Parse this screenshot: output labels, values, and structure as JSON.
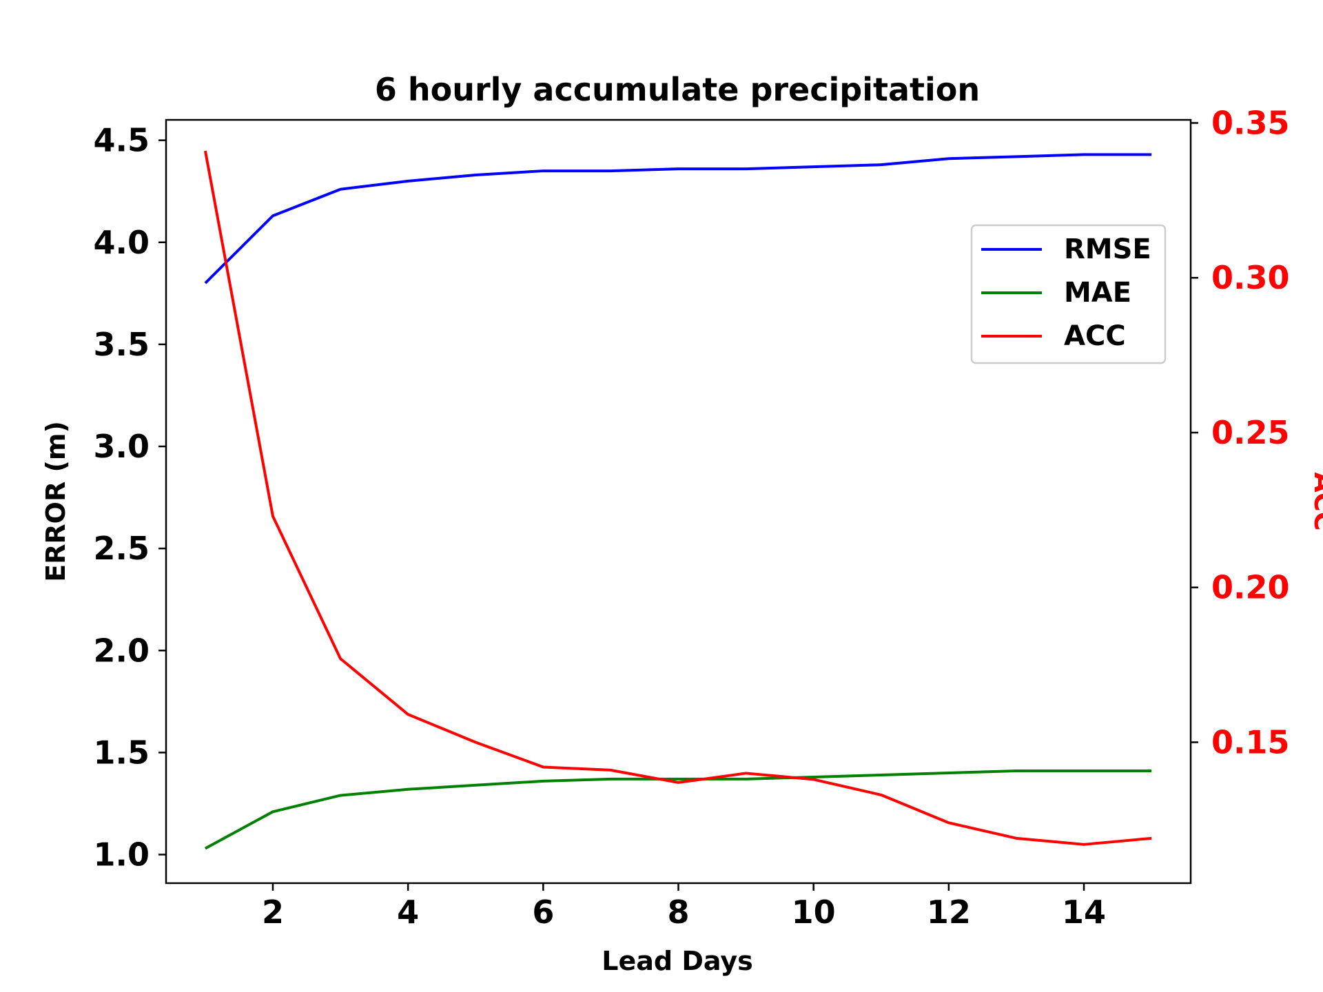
{
  "chart_data": {
    "type": "line",
    "title": "6 hourly accumulate precipitation",
    "xlabel": "Lead Days",
    "ylabel": "ERROR (m)",
    "y2label": "ACC",
    "x": [
      1,
      2,
      3,
      4,
      5,
      6,
      7,
      8,
      9,
      10,
      11,
      12,
      13,
      14,
      15
    ],
    "xlim": [
      0.42,
      15.58
    ],
    "ylim": [
      0.86,
      4.6
    ],
    "y2lim": [
      0.1045,
      0.351
    ],
    "xticks": [
      2,
      4,
      6,
      8,
      10,
      12,
      14
    ],
    "yticks": [
      1.0,
      1.5,
      2.0,
      2.5,
      3.0,
      3.5,
      4.0,
      4.5
    ],
    "y2ticks": [
      0.15,
      0.2,
      0.25,
      0.3,
      0.35
    ],
    "grid": false,
    "legend_position": "upper-right",
    "series": [
      {
        "name": "RMSE",
        "axis": "left",
        "color": "#0000ff",
        "values": [
          3.8,
          4.13,
          4.26,
          4.3,
          4.33,
          4.35,
          4.35,
          4.36,
          4.36,
          4.37,
          4.38,
          4.41,
          4.42,
          4.43,
          4.43
        ]
      },
      {
        "name": "MAE",
        "axis": "left",
        "color": "#008000",
        "values": [
          1.03,
          1.21,
          1.29,
          1.32,
          1.34,
          1.36,
          1.37,
          1.37,
          1.37,
          1.38,
          1.39,
          1.4,
          1.41,
          1.41,
          1.41
        ]
      },
      {
        "name": "ACC",
        "axis": "right",
        "color": "#ff0000",
        "values": [
          0.341,
          0.223,
          0.177,
          0.159,
          0.15,
          0.142,
          0.141,
          0.137,
          0.14,
          0.138,
          0.133,
          0.124,
          0.119,
          0.117,
          0.119
        ]
      }
    ]
  }
}
